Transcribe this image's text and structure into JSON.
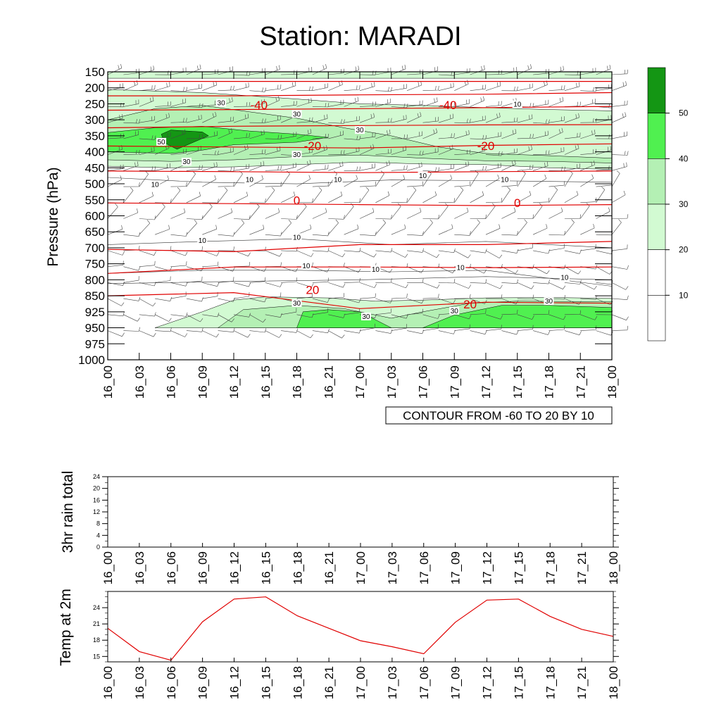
{
  "title": "Station: MARADI",
  "colors": {
    "fill_20_30": "#d2fad2",
    "fill_30_40": "#b4f0b4",
    "fill_40_50": "#50f050",
    "fill_50": "#149614",
    "temp_contour": "#e00000",
    "temp_line": "#e00000"
  },
  "info_label": "CONTOUR FROM -60 TO 20 BY 10",
  "chart_data": [
    {
      "type": "contour",
      "name": "pressure-time cross section",
      "title": "Station: MARADI",
      "xlabel": "",
      "ylabel": "Pressure (hPa)",
      "x_ticks": [
        "16_00",
        "16_03",
        "16_06",
        "16_09",
        "16_12",
        "16_15",
        "16_18",
        "16_21",
        "17_00",
        "17_03",
        "17_06",
        "17_09",
        "17_12",
        "17_15",
        "17_18",
        "17_21",
        "18_00"
      ],
      "y_ticks": [
        "150",
        "200",
        "250",
        "300",
        "350",
        "400",
        "450",
        "500",
        "550",
        "600",
        "650",
        "700",
        "750",
        "800",
        "850",
        "925",
        "950",
        "975",
        "1000"
      ],
      "wind_speed_contour_labels": [
        {
          "value": "30",
          "t": 3.6,
          "p": 250
        },
        {
          "value": "30",
          "t": 6.0,
          "p": 285
        },
        {
          "value": "10",
          "t": 13.0,
          "p": 255
        },
        {
          "value": "30",
          "t": 8.0,
          "p": 335
        },
        {
          "value": "50",
          "t": 1.7,
          "p": 372
        },
        {
          "value": "30",
          "t": 6.0,
          "p": 412
        },
        {
          "value": "30",
          "t": 2.5,
          "p": 434
        },
        {
          "value": "10",
          "t": 1.5,
          "p": 505
        },
        {
          "value": "10",
          "t": 4.5,
          "p": 490
        },
        {
          "value": "10",
          "t": 7.3,
          "p": 490
        },
        {
          "value": "10",
          "t": 10.0,
          "p": 478
        },
        {
          "value": "10",
          "t": 12.6,
          "p": 490
        },
        {
          "value": "10",
          "t": 3.0,
          "p": 680
        },
        {
          "value": "10",
          "t": 6.0,
          "p": 670
        },
        {
          "value": "10",
          "t": 6.3,
          "p": 760
        },
        {
          "value": "10",
          "t": 8.5,
          "p": 770
        },
        {
          "value": "10",
          "t": 11.2,
          "p": 765
        },
        {
          "value": "10",
          "t": 14.5,
          "p": 796
        },
        {
          "value": "30",
          "t": 6.0,
          "p": 889
        },
        {
          "value": "30",
          "t": 8.2,
          "p": 934
        },
        {
          "value": "30",
          "t": 11.0,
          "p": 925
        },
        {
          "value": "30",
          "t": 14.0,
          "p": 880
        }
      ],
      "temperature_contour_labels": [
        {
          "value": "-40",
          "t": 4.8,
          "p": 262
        },
        {
          "value": "-40",
          "t": 10.8,
          "p": 262
        },
        {
          "value": "-20",
          "t": 6.5,
          "p": 390
        },
        {
          "value": "-20",
          "t": 12.0,
          "p": 390
        },
        {
          "value": "0",
          "t": 6.0,
          "p": 560
        },
        {
          "value": "0",
          "t": 13.0,
          "p": 568
        },
        {
          "value": "20",
          "t": 6.5,
          "p": 840
        },
        {
          "value": "20",
          "t": 11.5,
          "p": 902
        }
      ],
      "temperature_isotherms": [
        {
          "level": -50,
          "p": [
            180,
            180,
            180,
            180,
            180
          ]
        },
        {
          "level": -45,
          "p": [
            225,
            225,
            222,
            220,
            215
          ]
        },
        {
          "level": -40,
          "p": [
            270,
            268,
            265,
            262,
            258
          ]
        },
        {
          "level": -30,
          "p": [
            325,
            320,
            318,
            316,
            315
          ]
        },
        {
          "level": -20,
          "p": [
            382,
            385,
            388,
            380,
            375
          ]
        },
        {
          "level": -10,
          "p": [
            460,
            462,
            465,
            462,
            460
          ]
        },
        {
          "level": 0,
          "p": [
            560,
            562,
            565,
            568,
            565
          ]
        },
        {
          "level": 10,
          "p": [
            705,
            712,
            690,
            690,
            680
          ]
        },
        {
          "level": 15,
          "p": [
            780,
            760,
            760,
            762,
            760
          ]
        },
        {
          "level": 20,
          "p": [
            850,
            840,
            910,
            880,
            885
          ]
        }
      ]
    },
    {
      "type": "line",
      "name": "3hr rain total",
      "ylabel": "3hr rain total",
      "ylim": [
        0,
        24
      ],
      "y_ticks": [
        "0",
        "4",
        "8",
        "12",
        "16",
        "20",
        "24"
      ],
      "x_ticks": [
        "16_00",
        "16_03",
        "16_06",
        "16_09",
        "16_12",
        "16_15",
        "16_18",
        "16_21",
        "17_00",
        "17_03",
        "17_06",
        "17_09",
        "17_12",
        "17_15",
        "17_18",
        "17_21",
        "18_00"
      ],
      "values": [
        0,
        0,
        0,
        0,
        0,
        0,
        0,
        0,
        0,
        0,
        0,
        0,
        0,
        0,
        0,
        0,
        0
      ]
    },
    {
      "type": "line",
      "name": "Temp at 2m",
      "ylabel": "Temp at 2m",
      "ylim": [
        14,
        27
      ],
      "y_ticks": [
        "15",
        "18",
        "21",
        "24"
      ],
      "x_ticks": [
        "16_00",
        "16_03",
        "16_06",
        "16_09",
        "16_12",
        "16_15",
        "16_18",
        "16_21",
        "17_00",
        "17_03",
        "17_06",
        "17_09",
        "17_12",
        "17_15",
        "17_18",
        "17_21",
        "18_00"
      ],
      "values": [
        20.2,
        15.9,
        14.3,
        21.4,
        25.6,
        26.0,
        22.5,
        20.2,
        17.9,
        16.8,
        15.5,
        21.3,
        25.4,
        25.6,
        22.4,
        20.0,
        18.7
      ]
    }
  ],
  "colorbar": {
    "labels": [
      "10",
      "20",
      "30",
      "40",
      "50"
    ]
  }
}
